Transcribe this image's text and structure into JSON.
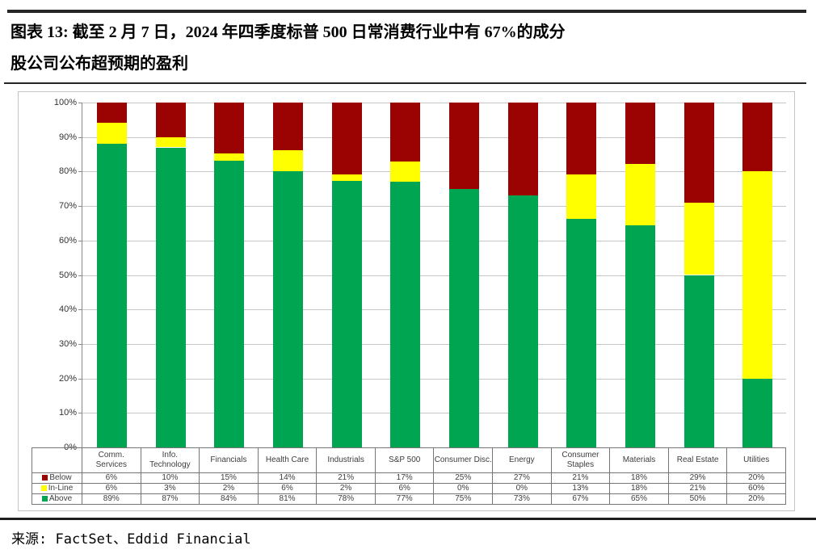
{
  "header": {
    "title_line1": "图表 13: 截至 2 月 7 日，2024 年四季度标普 500 日常消费行业中有 67%的成分",
    "title_line2": "股公司公布超预期的盈利"
  },
  "footer": {
    "source": "来源: FactSet、Eddid Financial"
  },
  "chart_data": {
    "type": "bar",
    "stacked": true,
    "normalized_to_100": true,
    "title": "图表 13: 截至 2 月 7 日，2024 年四季度标普 500 日常消费行业中有 67%的成分股公司公布超预期的盈利",
    "categories": [
      "Comm. Services",
      "Info. Technology",
      "Financials",
      "Health Care",
      "Industrials",
      "S&P 500",
      "Consumer Disc.",
      "Energy",
      "Consumer Staples",
      "Materials",
      "Real Estate",
      "Utilities"
    ],
    "series": [
      {
        "name": "Below",
        "color": "#9b0202",
        "values": [
          6,
          10,
          15,
          14,
          21,
          17,
          25,
          27,
          21,
          18,
          29,
          20
        ]
      },
      {
        "name": "In-Line",
        "color": "#ffff00",
        "values": [
          6,
          3,
          2,
          6,
          2,
          6,
          0,
          0,
          13,
          18,
          21,
          60
        ]
      },
      {
        "name": "Above",
        "color": "#00a551",
        "values": [
          89,
          87,
          84,
          81,
          78,
          77,
          75,
          73,
          67,
          65,
          50,
          20
        ]
      }
    ],
    "value_suffix": "%",
    "ylim": [
      0,
      100
    ],
    "ytick_step": 10,
    "ytick_labels": [
      "0%",
      "10%",
      "20%",
      "30%",
      "40%",
      "50%",
      "60%",
      "70%",
      "80%",
      "90%",
      "100%"
    ],
    "grid": true,
    "legend_position": "data-table-left",
    "colors": {
      "below": "#9b0202",
      "in_line": "#ffff00",
      "above": "#00a551"
    }
  }
}
